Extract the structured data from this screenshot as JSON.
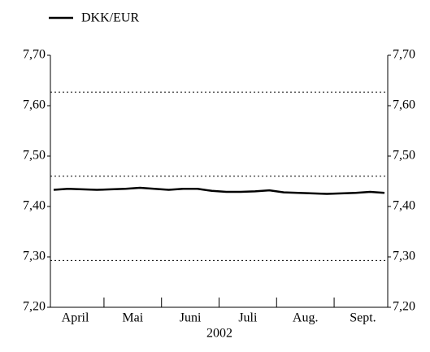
{
  "chart_data": {
    "type": "line",
    "categories": [
      null,
      "April",
      null,
      null,
      null,
      "Mai",
      null,
      null,
      null,
      "Juni",
      null,
      null,
      null,
      "Juli",
      null,
      null,
      null,
      "Aug.",
      null,
      null,
      null,
      "Sept.",
      null,
      null
    ],
    "x_label": "2002",
    "series": [
      {
        "name": "DKK/EUR",
        "color": "#000000",
        "values": [
          7.433,
          7.435,
          7.434,
          7.433,
          7.434,
          7.435,
          7.437,
          7.435,
          7.433,
          7.435,
          7.435,
          7.431,
          7.429,
          7.429,
          7.43,
          7.432,
          7.428,
          7.427,
          7.426,
          7.425,
          7.426,
          7.427,
          7.429,
          7.427
        ]
      }
    ],
    "reference_lines": [
      7.627,
      7.46,
      7.293
    ],
    "ylim": [
      7.2,
      7.7
    ],
    "yticks": [
      {
        "value": 7.2,
        "label": "7,20"
      },
      {
        "value": 7.3,
        "label": "7,30"
      },
      {
        "value": 7.4,
        "label": "7,40"
      },
      {
        "value": 7.5,
        "label": "7,50"
      },
      {
        "value": 7.6,
        "label": "7,60"
      },
      {
        "value": 7.7,
        "label": "7,70"
      }
    ],
    "y2lim": [
      7.2,
      7.7
    ],
    "y2ticks": [
      {
        "value": 7.2,
        "label": "7,20"
      },
      {
        "value": 7.3,
        "label": "7,30"
      },
      {
        "value": 7.4,
        "label": "7,40"
      },
      {
        "value": 7.5,
        "label": "7,50"
      },
      {
        "value": 7.6,
        "label": "7,60"
      },
      {
        "value": 7.7,
        "label": "7,70"
      }
    ],
    "legend": "top-left"
  }
}
